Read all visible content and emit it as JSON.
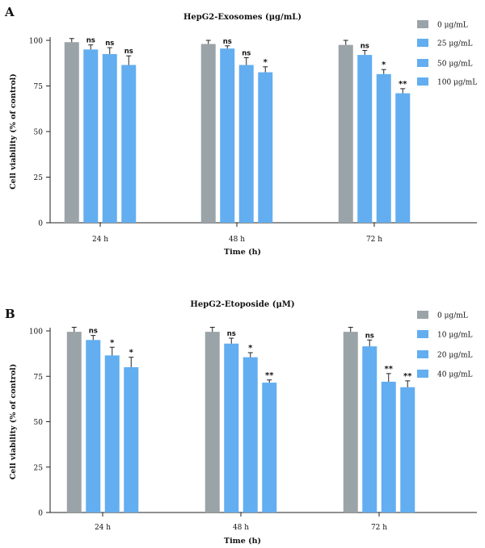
{
  "chart_data": [
    {
      "type": "bar",
      "panel_label": "A",
      "title": "HepG2-Exosomes (μg/mL)",
      "xlabel": "Time (h)",
      "ylabel": "Cell viability (% of control)",
      "ylim": [
        0,
        100
      ],
      "yticks": [
        "0",
        "25",
        "50",
        "75",
        "100"
      ],
      "categories": [
        "24 h",
        "48 h",
        "72 h"
      ],
      "legend_position": "right",
      "series": [
        {
          "name": "0 μg/mL",
          "color": "#9aa3a8",
          "values": [
            99,
            98,
            97.5
          ],
          "errors": [
            2,
            2,
            2.5
          ],
          "annotations": [
            "",
            "",
            ""
          ]
        },
        {
          "name": "25 μg/mL",
          "color": "#62aef0",
          "values": [
            95,
            95.5,
            92
          ],
          "errors": [
            2.5,
            1.5,
            2.5
          ],
          "annotations": [
            "ns",
            "ns",
            "ns"
          ]
        },
        {
          "name": "50 μg/mL",
          "color": "#62aef0",
          "values": [
            92.5,
            86.5,
            81.5
          ],
          "errors": [
            3.5,
            4,
            2.5
          ],
          "annotations": [
            "ns",
            "ns",
            "*"
          ]
        },
        {
          "name": "100 μg/mL",
          "color": "#62aef0",
          "values": [
            86.5,
            82.5,
            71
          ],
          "errors": [
            5,
            3,
            2.5
          ],
          "annotations": [
            "ns",
            "*",
            "**"
          ]
        }
      ]
    },
    {
      "type": "bar",
      "panel_label": "B",
      "title": "HepG2-Etoposide (μM)",
      "xlabel": "Time (h)",
      "ylabel": "Cell viability (% of control)",
      "ylim": [
        0,
        100
      ],
      "yticks": [
        "0",
        "25",
        "50",
        "75",
        "100"
      ],
      "categories": [
        "24 h",
        "48 h",
        "72 h"
      ],
      "legend_position": "right",
      "series": [
        {
          "name": "0 μg/mL",
          "color": "#9aa3a8",
          "values": [
            99.5,
            99.5,
            99.5
          ],
          "errors": [
            2.5,
            2.5,
            2.5
          ],
          "annotations": [
            "",
            "",
            ""
          ]
        },
        {
          "name": "10 μg/mL",
          "color": "#62aef0",
          "values": [
            95,
            93,
            91.5
          ],
          "errors": [
            2.5,
            3,
            3.5
          ],
          "annotations": [
            "ns",
            "ns",
            "ns"
          ]
        },
        {
          "name": "20 μg/mL",
          "color": "#62aef0",
          "values": [
            86.5,
            85.5,
            72
          ],
          "errors": [
            4.5,
            2.5,
            4.5
          ],
          "annotations": [
            "*",
            "*",
            "**"
          ]
        },
        {
          "name": "40 μg/mL",
          "color": "#62aef0",
          "values": [
            80,
            71.5,
            69
          ],
          "errors": [
            5.5,
            1.5,
            3.5
          ],
          "annotations": [
            "*",
            "**",
            "**"
          ]
        }
      ]
    }
  ]
}
